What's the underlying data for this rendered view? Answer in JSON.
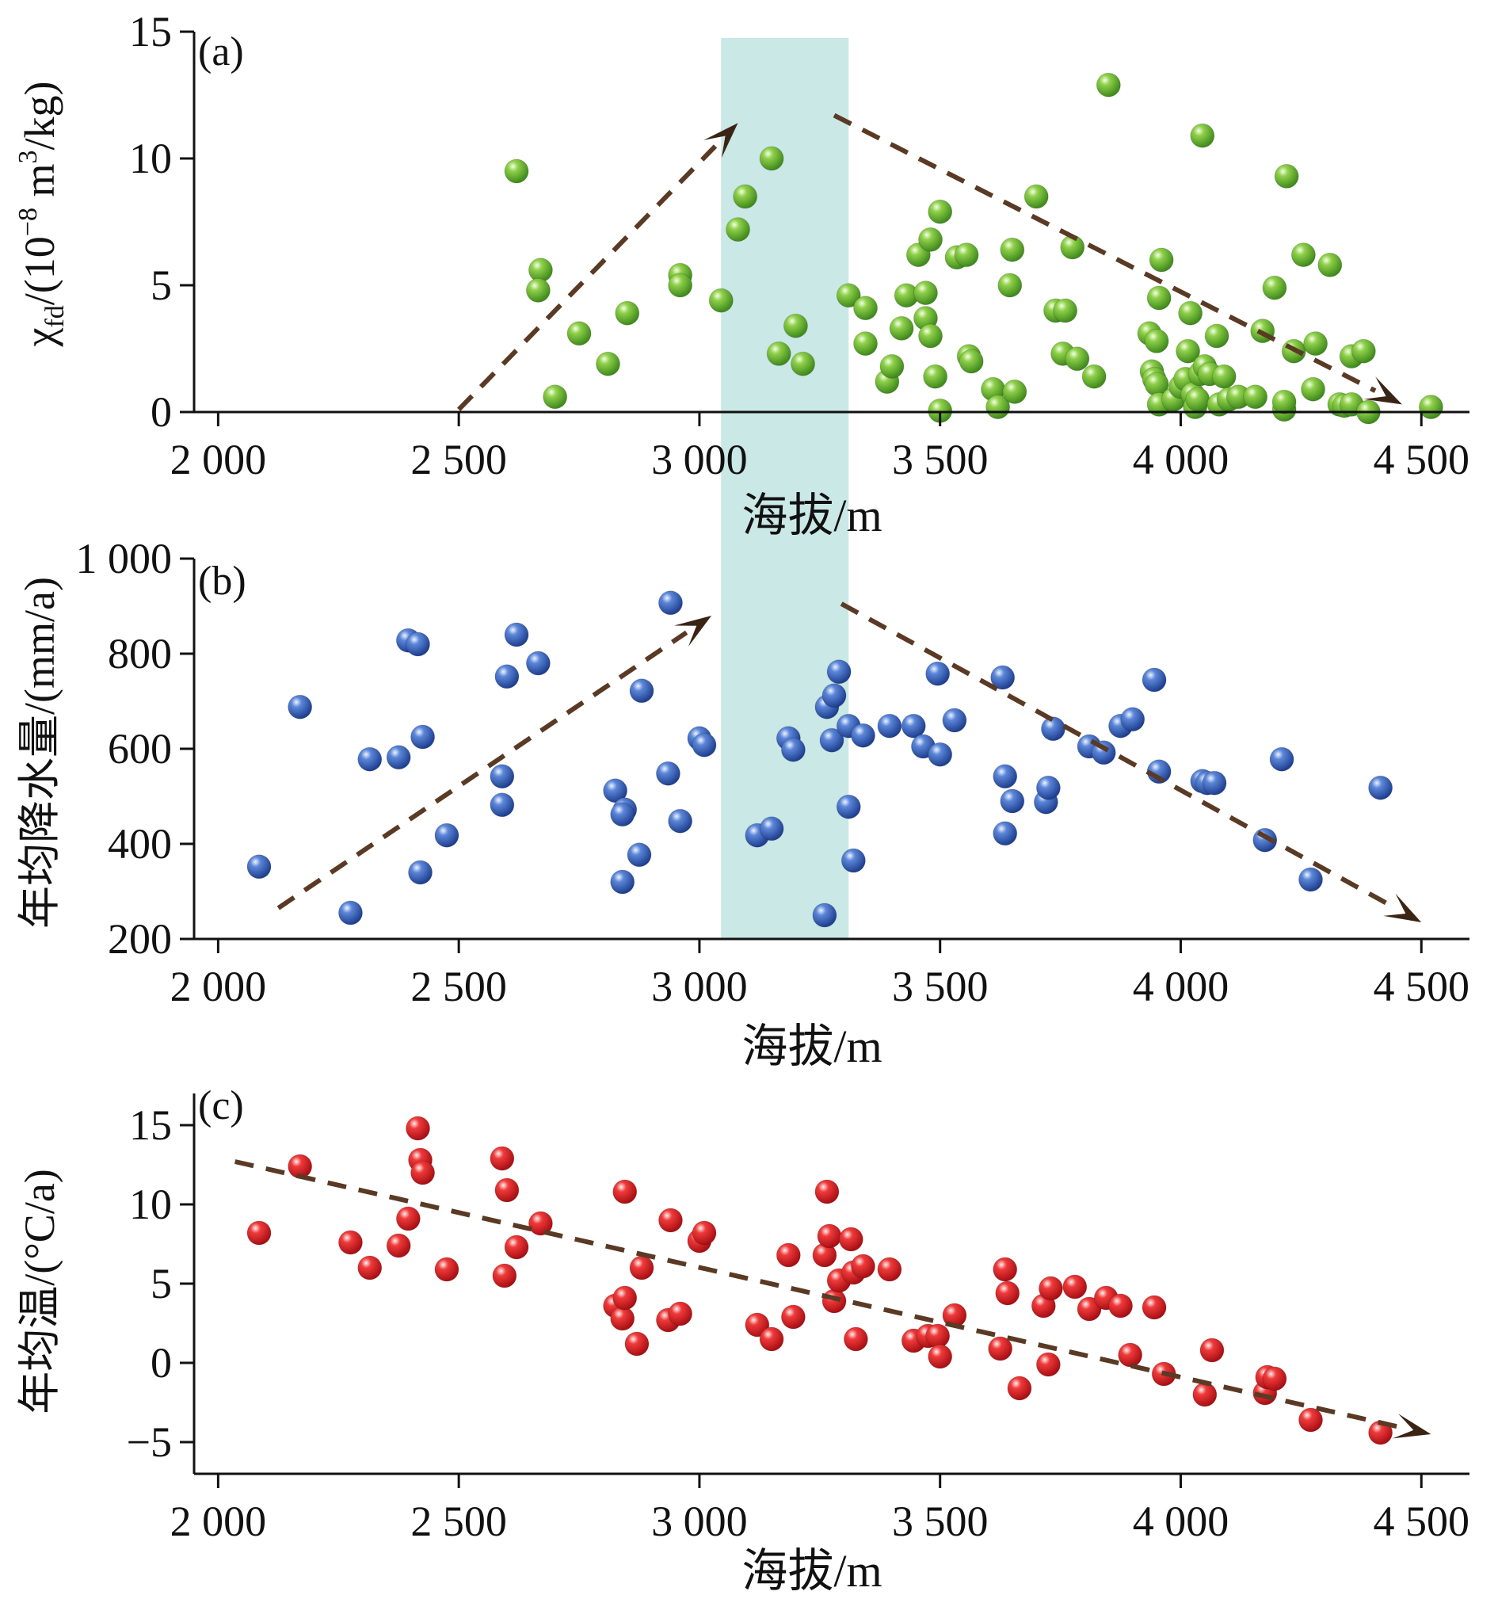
{
  "colors": {
    "green": "#6fb83a",
    "blue": "#3f63b8",
    "red": "#e0262b",
    "band": "#c9e8e6",
    "trend": "#5a3a24"
  },
  "chart_data": [
    {
      "type": "scatter",
      "panel_label": "(a)",
      "xlabel": "海拔/m",
      "ylabel": "χfd/(10⁻⁸ m³/kg)",
      "ylabel_parts": {
        "chi": "χ",
        "sub": "fd",
        "mid": "/(10",
        "sup1": "−8",
        "m": " m",
        "sup2": "3",
        "end": "/kg)"
      },
      "xlim": [
        1950,
        4600
      ],
      "ylim": [
        0,
        15
      ],
      "x_ticks": [
        2000,
        2500,
        3000,
        3500,
        4000,
        4500
      ],
      "x_tick_labels": [
        "2 000",
        "2 500",
        "3 000",
        "3 500",
        "4 000",
        "4 500"
      ],
      "y_ticks": [
        0,
        5,
        10,
        15
      ],
      "y_tick_labels": [
        "0",
        "5",
        "10",
        "15"
      ],
      "highlight_band": [
        3045,
        3310
      ],
      "color": "green",
      "points": [
        [
          2620,
          9.5
        ],
        [
          2670,
          5.6
        ],
        [
          2665,
          4.8
        ],
        [
          2700,
          0.6
        ],
        [
          2750,
          3.1
        ],
        [
          2810,
          1.9
        ],
        [
          2850,
          3.9
        ],
        [
          2960,
          5.4
        ],
        [
          2960,
          5.0
        ],
        [
          3045,
          4.4
        ],
        [
          3080,
          7.2
        ],
        [
          3095,
          8.5
        ],
        [
          3150,
          10.0
        ],
        [
          3165,
          2.3
        ],
        [
          3200,
          3.4
        ],
        [
          3215,
          1.9
        ],
        [
          3310,
          4.6
        ],
        [
          3345,
          4.1
        ],
        [
          3345,
          2.7
        ],
        [
          3390,
          1.2
        ],
        [
          3400,
          1.8
        ],
        [
          3420,
          3.3
        ],
        [
          3430,
          4.6
        ],
        [
          3455,
          6.2
        ],
        [
          3470,
          4.7
        ],
        [
          3470,
          3.7
        ],
        [
          3480,
          6.8
        ],
        [
          3480,
          3.0
        ],
        [
          3490,
          1.4
        ],
        [
          3500,
          7.9
        ],
        [
          3500,
          0.05
        ],
        [
          3535,
          6.1
        ],
        [
          3555,
          6.2
        ],
        [
          3560,
          2.2
        ],
        [
          3565,
          2.0
        ],
        [
          3610,
          0.9
        ],
        [
          3620,
          0.2
        ],
        [
          3650,
          6.4
        ],
        [
          3645,
          5.0
        ],
        [
          3655,
          0.8
        ],
        [
          3700,
          8.5
        ],
        [
          3740,
          4.0
        ],
        [
          3760,
          4.0
        ],
        [
          3755,
          2.3
        ],
        [
          3775,
          6.5
        ],
        [
          3785,
          2.1
        ],
        [
          3820,
          1.4
        ],
        [
          3850,
          12.9
        ],
        [
          3935,
          3.1
        ],
        [
          3940,
          1.6
        ],
        [
          3945,
          1.3
        ],
        [
          3950,
          2.8
        ],
        [
          3960,
          6.0
        ],
        [
          3955,
          4.5
        ],
        [
          3950,
          1.1
        ],
        [
          3955,
          0.3
        ],
        [
          3985,
          0.5
        ],
        [
          4000,
          1.0
        ],
        [
          4010,
          1.3
        ],
        [
          4015,
          2.4
        ],
        [
          4020,
          3.9
        ],
        [
          4025,
          0.7
        ],
        [
          4030,
          0.2
        ],
        [
          4035,
          0.5
        ],
        [
          4040,
          1.5
        ],
        [
          4045,
          10.9
        ],
        [
          4050,
          1.8
        ],
        [
          4060,
          1.5
        ],
        [
          4075,
          3.0
        ],
        [
          4080,
          0.3
        ],
        [
          4090,
          1.4
        ],
        [
          4100,
          0.5
        ],
        [
          4120,
          0.6
        ],
        [
          4155,
          0.6
        ],
        [
          4170,
          3.2
        ],
        [
          4195,
          4.9
        ],
        [
          4215,
          0.1
        ],
        [
          4215,
          0.4
        ],
        [
          4220,
          9.3
        ],
        [
          4235,
          2.4
        ],
        [
          4255,
          6.2
        ],
        [
          4275,
          0.9
        ],
        [
          4280,
          2.7
        ],
        [
          4310,
          5.8
        ],
        [
          4330,
          0.3
        ],
        [
          4340,
          0.25
        ],
        [
          4355,
          0.3
        ],
        [
          4355,
          2.2
        ],
        [
          4380,
          2.4
        ],
        [
          4390,
          0.0
        ],
        [
          4520,
          0.2
        ]
      ],
      "trend_up": [
        [
          2500,
          0.1
        ],
        [
          3080,
          11.4
        ]
      ],
      "trend_down": [
        [
          3280,
          11.7
        ],
        [
          4460,
          0.3
        ]
      ]
    },
    {
      "type": "scatter",
      "panel_label": "(b)",
      "xlabel": "海拔/m",
      "ylabel": "年均降水量/(mm/a)",
      "xlim": [
        1950,
        4600
      ],
      "ylim": [
        200,
        1000
      ],
      "x_ticks": [
        2000,
        2500,
        3000,
        3500,
        4000,
        4500
      ],
      "x_tick_labels": [
        "2 000",
        "2 500",
        "3 000",
        "3 500",
        "4 000",
        "4 500"
      ],
      "y_ticks": [
        200,
        400,
        600,
        800,
        1000
      ],
      "y_tick_labels": [
        "200",
        "400",
        "600",
        "800",
        "1 000"
      ],
      "color": "blue",
      "points": [
        [
          2085,
          352
        ],
        [
          2170,
          688
        ],
        [
          2275,
          255
        ],
        [
          2315,
          578
        ],
        [
          2375,
          582
        ],
        [
          2395,
          828
        ],
        [
          2415,
          820
        ],
        [
          2420,
          340
        ],
        [
          2425,
          625
        ],
        [
          2475,
          418
        ],
        [
          2590,
          542
        ],
        [
          2590,
          482
        ],
        [
          2600,
          752
        ],
        [
          2620,
          840
        ],
        [
          2665,
          780
        ],
        [
          2825,
          512
        ],
        [
          2845,
          472
        ],
        [
          2840,
          462
        ],
        [
          2840,
          320
        ],
        [
          2875,
          377
        ],
        [
          2880,
          722
        ],
        [
          2935,
          548
        ],
        [
          2940,
          907
        ],
        [
          2960,
          448
        ],
        [
          3000,
          622
        ],
        [
          3010,
          608
        ],
        [
          3120,
          418
        ],
        [
          3150,
          432
        ],
        [
          3185,
          622
        ],
        [
          3195,
          598
        ],
        [
          3265,
          688
        ],
        [
          3275,
          618
        ],
        [
          3280,
          712
        ],
        [
          3290,
          762
        ],
        [
          3310,
          478
        ],
        [
          3310,
          648
        ],
        [
          3320,
          365
        ],
        [
          3340,
          628
        ],
        [
          3395,
          648
        ],
        [
          3445,
          648
        ],
        [
          3465,
          605
        ],
        [
          3495,
          758
        ],
        [
          3500,
          588
        ],
        [
          3530,
          660
        ],
        [
          3630,
          750
        ],
        [
          3635,
          542
        ],
        [
          3635,
          422
        ],
        [
          3650,
          490
        ],
        [
          3720,
          488
        ],
        [
          3725,
          518
        ],
        [
          3735,
          642
        ],
        [
          3810,
          605
        ],
        [
          3840,
          592
        ],
        [
          3875,
          648
        ],
        [
          3900,
          662
        ],
        [
          3945,
          745
        ],
        [
          3955,
          552
        ],
        [
          4045,
          532
        ],
        [
          4055,
          528
        ],
        [
          4070,
          528
        ],
        [
          4175,
          408
        ],
        [
          4210,
          578
        ],
        [
          4270,
          325
        ],
        [
          4415,
          518
        ],
        [
          3260,
          250
        ]
      ],
      "trend_up": [
        [
          2125,
          265
        ],
        [
          3025,
          880
        ]
      ],
      "trend_down": [
        [
          3295,
          905
        ],
        [
          4500,
          235
        ]
      ]
    },
    {
      "type": "scatter",
      "panel_label": "(c)",
      "xlabel": "海拔/m",
      "ylabel": "年均温/(°C/a)",
      "xlim": [
        1950,
        4600
      ],
      "ylim": [
        -7,
        17
      ],
      "x_ticks": [
        2000,
        2500,
        3000,
        3500,
        4000,
        4500
      ],
      "x_tick_labels": [
        "2 000",
        "2 500",
        "3 000",
        "3 500",
        "4 000",
        "4 500"
      ],
      "y_ticks": [
        -5,
        0,
        5,
        10,
        15
      ],
      "y_tick_labels": [
        "−5",
        "0",
        "5",
        "10",
        "15"
      ],
      "color": "red",
      "points": [
        [
          2085,
          8.2
        ],
        [
          2170,
          12.4
        ],
        [
          2275,
          7.6
        ],
        [
          2315,
          6.0
        ],
        [
          2375,
          7.4
        ],
        [
          2395,
          9.1
        ],
        [
          2415,
          14.8
        ],
        [
          2420,
          12.8
        ],
        [
          2425,
          12.0
        ],
        [
          2475,
          5.9
        ],
        [
          2590,
          12.9
        ],
        [
          2595,
          5.5
        ],
        [
          2600,
          10.9
        ],
        [
          2620,
          7.3
        ],
        [
          2670,
          8.8
        ],
        [
          2825,
          3.6
        ],
        [
          2840,
          2.8
        ],
        [
          2845,
          4.1
        ],
        [
          2845,
          10.8
        ],
        [
          2870,
          1.2
        ],
        [
          2880,
          6.0
        ],
        [
          2935,
          2.7
        ],
        [
          2940,
          9.0
        ],
        [
          2960,
          3.1
        ],
        [
          3000,
          7.7
        ],
        [
          3010,
          8.2
        ],
        [
          3120,
          2.4
        ],
        [
          3150,
          1.5
        ],
        [
          3185,
          6.8
        ],
        [
          3195,
          2.9
        ],
        [
          3260,
          6.8
        ],
        [
          3265,
          10.8
        ],
        [
          3270,
          8.0
        ],
        [
          3280,
          3.9
        ],
        [
          3290,
          5.2
        ],
        [
          3315,
          7.8
        ],
        [
          3320,
          5.7
        ],
        [
          3325,
          1.5
        ],
        [
          3340,
          6.1
        ],
        [
          3395,
          5.9
        ],
        [
          3445,
          1.4
        ],
        [
          3475,
          1.7
        ],
        [
          3495,
          1.7
        ],
        [
          3500,
          0.4
        ],
        [
          3530,
          3.0
        ],
        [
          3625,
          0.9
        ],
        [
          3635,
          5.9
        ],
        [
          3640,
          4.4
        ],
        [
          3665,
          -1.6
        ],
        [
          3715,
          3.6
        ],
        [
          3725,
          -0.1
        ],
        [
          3730,
          4.7
        ],
        [
          3780,
          4.8
        ],
        [
          3810,
          3.4
        ],
        [
          3845,
          4.1
        ],
        [
          3875,
          3.6
        ],
        [
          3895,
          0.5
        ],
        [
          3945,
          3.5
        ],
        [
          3965,
          -0.7
        ],
        [
          4050,
          -2.0
        ],
        [
          4065,
          0.8
        ],
        [
          4175,
          -1.9
        ],
        [
          4180,
          -0.9
        ],
        [
          4195,
          -1.0
        ],
        [
          4270,
          -3.6
        ],
        [
          4415,
          -4.4
        ]
      ],
      "trend_down": [
        [
          2035,
          12.7
        ],
        [
          4520,
          -4.5
        ]
      ]
    }
  ]
}
